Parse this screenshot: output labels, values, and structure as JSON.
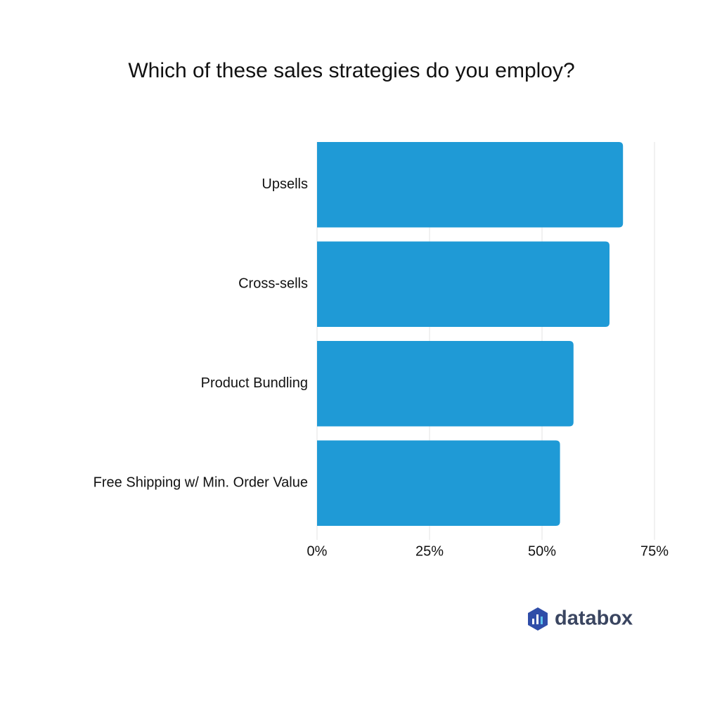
{
  "chart_data": {
    "type": "bar",
    "orientation": "horizontal",
    "title": "Which of these sales strategies do you employ?",
    "categories": [
      "Upsells",
      "Cross-sells",
      "Product Bundling",
      "Free Shipping w/ Min. Order Value"
    ],
    "values": [
      68,
      65,
      57,
      54
    ],
    "color": "#1f9ad6",
    "xlim": [
      0,
      75
    ],
    "xticks": [
      {
        "value": 0,
        "label": "0%"
      },
      {
        "value": 25,
        "label": "25%"
      },
      {
        "value": 50,
        "label": "50%"
      },
      {
        "value": 75,
        "label": "75%"
      }
    ],
    "grid": true
  },
  "logo": {
    "text": "databox"
  }
}
